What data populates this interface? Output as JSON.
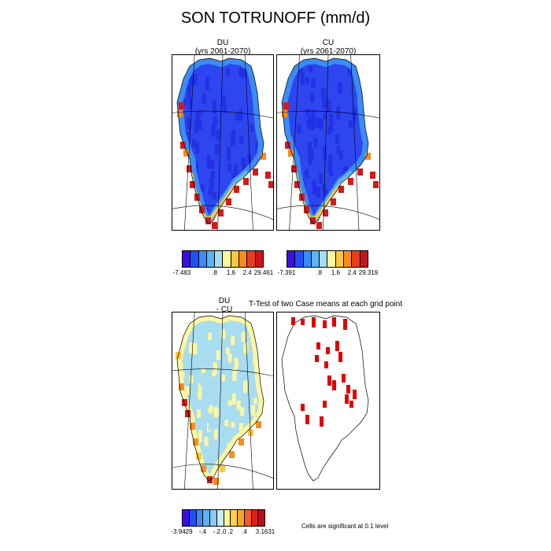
{
  "title": "SON TOTRUNOFF (mm/d)",
  "panels": {
    "du": {
      "name": "DU",
      "years": "(yrs 2061-2070)"
    },
    "cu": {
      "name": "CU",
      "years": "(yrs 2061-2070)"
    },
    "diff": {
      "name_line1": "DU",
      "name_line2": "- CU"
    }
  },
  "ttest_title": "T-Test of two Case means at each grid point",
  "significance_note": "Cells are significant at 0.1 level",
  "colorbars": {
    "du": {
      "colors": [
        "#3b0fe4",
        "#2050f5",
        "#3a8cf6",
        "#5ab4f5",
        "#a8dcf0",
        "#fff6a0",
        "#fcc73e",
        "#fa8c1e",
        "#ea3c1c",
        "#c8141a"
      ],
      "labels": [
        "-7.483",
        ".8",
        "1.6",
        "2.4",
        "29.461"
      ]
    },
    "cu": {
      "colors": [
        "#3b0fe4",
        "#2050f5",
        "#3a8cf6",
        "#5ab4f5",
        "#a8dcf0",
        "#fff6a0",
        "#fcc73e",
        "#fa8c1e",
        "#ea3c1c",
        "#c8141a"
      ],
      "labels": [
        "-7.391",
        ".8",
        "1.6",
        "2.4",
        "29.319"
      ]
    },
    "diff": {
      "colors": [
        "#3b0fe4",
        "#2050f5",
        "#3a8cf6",
        "#5ab4f5",
        "#8ccaf2",
        "#c8ecf5",
        "#fff6a0",
        "#fcd24a",
        "#fca228",
        "#f55a1e",
        "#dc1e1e",
        "#b4101a"
      ],
      "labels": [
        "-3.9429",
        "-.4",
        "-.2",
        ".0",
        ".2",
        ".4",
        "3.1631"
      ]
    }
  },
  "map_colors": {
    "interior": "#2d46f0",
    "interior_dark": "#2430e6",
    "margin_light": "#3a8cf6",
    "margin_cyan": "#5ab4f5",
    "margin_yellow": "#fcc73e",
    "margin_orange": "#fa8c1e",
    "margin_red": "#d21a1a",
    "diff_light_blue": "#a8dcf0",
    "diff_yellow": "#fff6a0",
    "sig_red": "#e00000"
  }
}
